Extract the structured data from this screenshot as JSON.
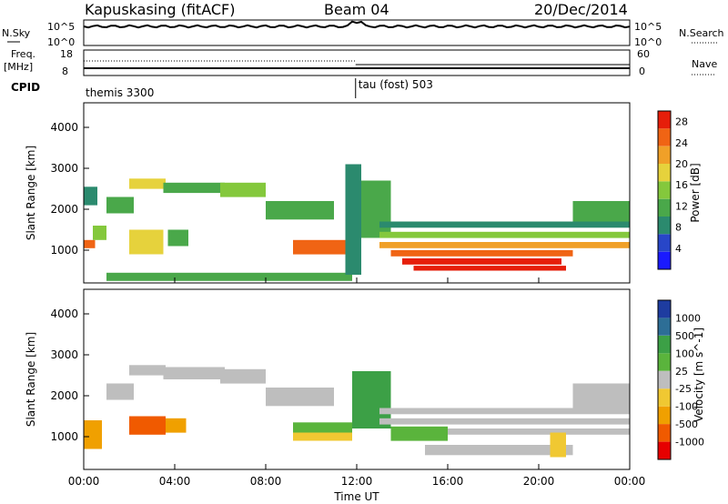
{
  "header": {
    "site": "Kapuskasing (fitACF)",
    "beam": "Beam 04",
    "date": "20/Dec/2014"
  },
  "top_panel": {
    "left_label": "N.Sky",
    "right_label": "N.Search",
    "ticks_left": [
      "10^5",
      "10^0"
    ],
    "ticks_right": [
      "10^5",
      "10^0"
    ]
  },
  "freq_panel": {
    "left_label": "Freq.",
    "left_unit": "[MHz]",
    "right_label": "Nave",
    "ticks_left": [
      "18",
      "8"
    ],
    "ticks_right": [
      "60",
      "0"
    ]
  },
  "cpid": {
    "label": "CPID",
    "modes": [
      {
        "name": "themis 3300",
        "start_hour": 0,
        "end_hour": 11.95
      },
      {
        "name": "tau (fost) 503",
        "start_hour": 11.95,
        "end_hour": 24
      }
    ]
  },
  "colors": {
    "power": [
      "#1a1aff",
      "#2846c8",
      "#2b8a6e",
      "#4aa84a",
      "#84c83c",
      "#e6d23c",
      "#f0a028",
      "#f06414",
      "#e61e0a"
    ],
    "velocity": [
      "#e60000",
      "#f05a00",
      "#f0a000",
      "#f0c832",
      "#bebebe",
      "#5ab43c",
      "#3ca046",
      "#2d6e96",
      "#1e3ca0"
    ],
    "ground_scatter": "#bebebe"
  },
  "chart_data": [
    {
      "type": "heatmap",
      "name": "power",
      "x_label": "",
      "ylabel": "Slant Range [km]",
      "xlim": [
        0,
        24
      ],
      "ylim": [
        200,
        4600
      ],
      "yticks": [
        1000,
        2000,
        3000,
        4000
      ],
      "colorbar_label": "Power [dB]",
      "colorbar_ticks": [
        "4",
        "8",
        "12",
        "16",
        "20",
        "24",
        "28"
      ],
      "colorbar_range": [
        0,
        30
      ],
      "regions": [
        {
          "t0": 0.0,
          "t1": 0.5,
          "r0": 1050,
          "r1": 1250,
          "level": 25
        },
        {
          "t0": 0.0,
          "t1": 0.6,
          "r0": 2100,
          "r1": 2550,
          "level": 8
        },
        {
          "t0": 0.4,
          "t1": 1.0,
          "r0": 1250,
          "r1": 1600,
          "level": 14
        },
        {
          "t0": 1.0,
          "t1": 2.2,
          "r0": 1900,
          "r1": 2300,
          "level": 12
        },
        {
          "t0": 2.0,
          "t1": 3.6,
          "r0": 2500,
          "r1": 2750,
          "level": 18
        },
        {
          "t0": 3.5,
          "t1": 6.2,
          "r0": 2400,
          "r1": 2650,
          "level": 13
        },
        {
          "t0": 6.0,
          "t1": 8.0,
          "r0": 2300,
          "r1": 2650,
          "level": 14
        },
        {
          "t0": 8.0,
          "t1": 11.0,
          "r0": 1750,
          "r1": 2200,
          "level": 12
        },
        {
          "t0": 2.0,
          "t1": 3.5,
          "r0": 900,
          "r1": 1500,
          "level": 18
        },
        {
          "t0": 3.7,
          "t1": 4.6,
          "r0": 1100,
          "r1": 1500,
          "level": 12
        },
        {
          "t0": 9.2,
          "t1": 11.8,
          "r0": 900,
          "r1": 1250,
          "level": 24
        },
        {
          "t0": 1.0,
          "t1": 11.8,
          "r0": 250,
          "r1": 450,
          "level": 10
        },
        {
          "t0": 11.5,
          "t1": 12.2,
          "r0": 400,
          "r1": 3100,
          "level": 8
        },
        {
          "t0": 12.2,
          "t1": 13.5,
          "r0": 1300,
          "r1": 2700,
          "level": 12
        },
        {
          "t0": 13.0,
          "t1": 24.0,
          "r0": 1550,
          "r1": 1700,
          "level": 8
        },
        {
          "t0": 13.0,
          "t1": 24.0,
          "r0": 1300,
          "r1": 1450,
          "level": 16
        },
        {
          "t0": 13.0,
          "t1": 24.0,
          "r0": 1050,
          "r1": 1200,
          "level": 22
        },
        {
          "t0": 13.5,
          "t1": 21.5,
          "r0": 850,
          "r1": 1000,
          "level": 26
        },
        {
          "t0": 14.0,
          "t1": 21.0,
          "r0": 650,
          "r1": 800,
          "level": 28
        },
        {
          "t0": 14.5,
          "t1": 21.2,
          "r0": 500,
          "r1": 620,
          "level": 27
        },
        {
          "t0": 21.5,
          "t1": 24.0,
          "r0": 1700,
          "r1": 2200,
          "level": 10
        }
      ]
    },
    {
      "type": "heatmap",
      "name": "velocity",
      "xlabel": "Time UT",
      "ylabel": "Slant Range [km]",
      "xlim": [
        0,
        24
      ],
      "ylim": [
        200,
        4600
      ],
      "xticks": [
        "00:00",
        "04:00",
        "08:00",
        "12:00",
        "16:00",
        "20:00",
        "00:00"
      ],
      "yticks": [
        1000,
        2000,
        3000,
        4000
      ],
      "colorbar_label": "Velocity [m s^-1]",
      "colorbar_ticks": [
        "1000",
        "500",
        "100",
        "25",
        "-25",
        "-100",
        "-500",
        "-1000"
      ],
      "regions": [
        {
          "t0": 0.0,
          "t1": 0.8,
          "r0": 700,
          "r1": 1400,
          "level": "#f0a000"
        },
        {
          "t0": 1.0,
          "t1": 2.2,
          "r0": 1900,
          "r1": 2300,
          "level": "ground"
        },
        {
          "t0": 2.0,
          "t1": 3.6,
          "r0": 2500,
          "r1": 2750,
          "level": "ground"
        },
        {
          "t0": 3.5,
          "t1": 6.2,
          "r0": 2400,
          "r1": 2700,
          "level": "ground"
        },
        {
          "t0": 6.0,
          "t1": 8.0,
          "r0": 2300,
          "r1": 2650,
          "level": "ground"
        },
        {
          "t0": 8.0,
          "t1": 11.0,
          "r0": 1750,
          "r1": 2200,
          "level": "ground"
        },
        {
          "t0": 2.0,
          "t1": 3.6,
          "r0": 1050,
          "r1": 1500,
          "level": "#f05a00"
        },
        {
          "t0": 3.6,
          "t1": 4.5,
          "r0": 1100,
          "r1": 1450,
          "level": "#f0a000"
        },
        {
          "t0": 9.2,
          "t1": 11.8,
          "r0": 1100,
          "r1": 1350,
          "level": "#5ab43c"
        },
        {
          "t0": 9.2,
          "t1": 11.8,
          "r0": 900,
          "r1": 1100,
          "level": "#f0c832"
        },
        {
          "t0": 11.8,
          "t1": 13.5,
          "r0": 1200,
          "r1": 2600,
          "level": "#3ca046"
        },
        {
          "t0": 13.0,
          "t1": 24.0,
          "r0": 1550,
          "r1": 1700,
          "level": "ground"
        },
        {
          "t0": 13.0,
          "t1": 24.0,
          "r0": 1300,
          "r1": 1450,
          "level": "ground"
        },
        {
          "t0": 13.5,
          "t1": 16.0,
          "r0": 900,
          "r1": 1250,
          "level": "#5ab43c"
        },
        {
          "t0": 16.0,
          "t1": 24.0,
          "r0": 1050,
          "r1": 1200,
          "level": "ground"
        },
        {
          "t0": 15.0,
          "t1": 21.5,
          "r0": 550,
          "r1": 800,
          "level": "ground"
        },
        {
          "t0": 20.5,
          "t1": 21.2,
          "r0": 500,
          "r1": 1100,
          "level": "#f0c832"
        },
        {
          "t0": 21.5,
          "t1": 24.0,
          "r0": 1700,
          "r1": 2300,
          "level": "ground"
        }
      ]
    }
  ]
}
